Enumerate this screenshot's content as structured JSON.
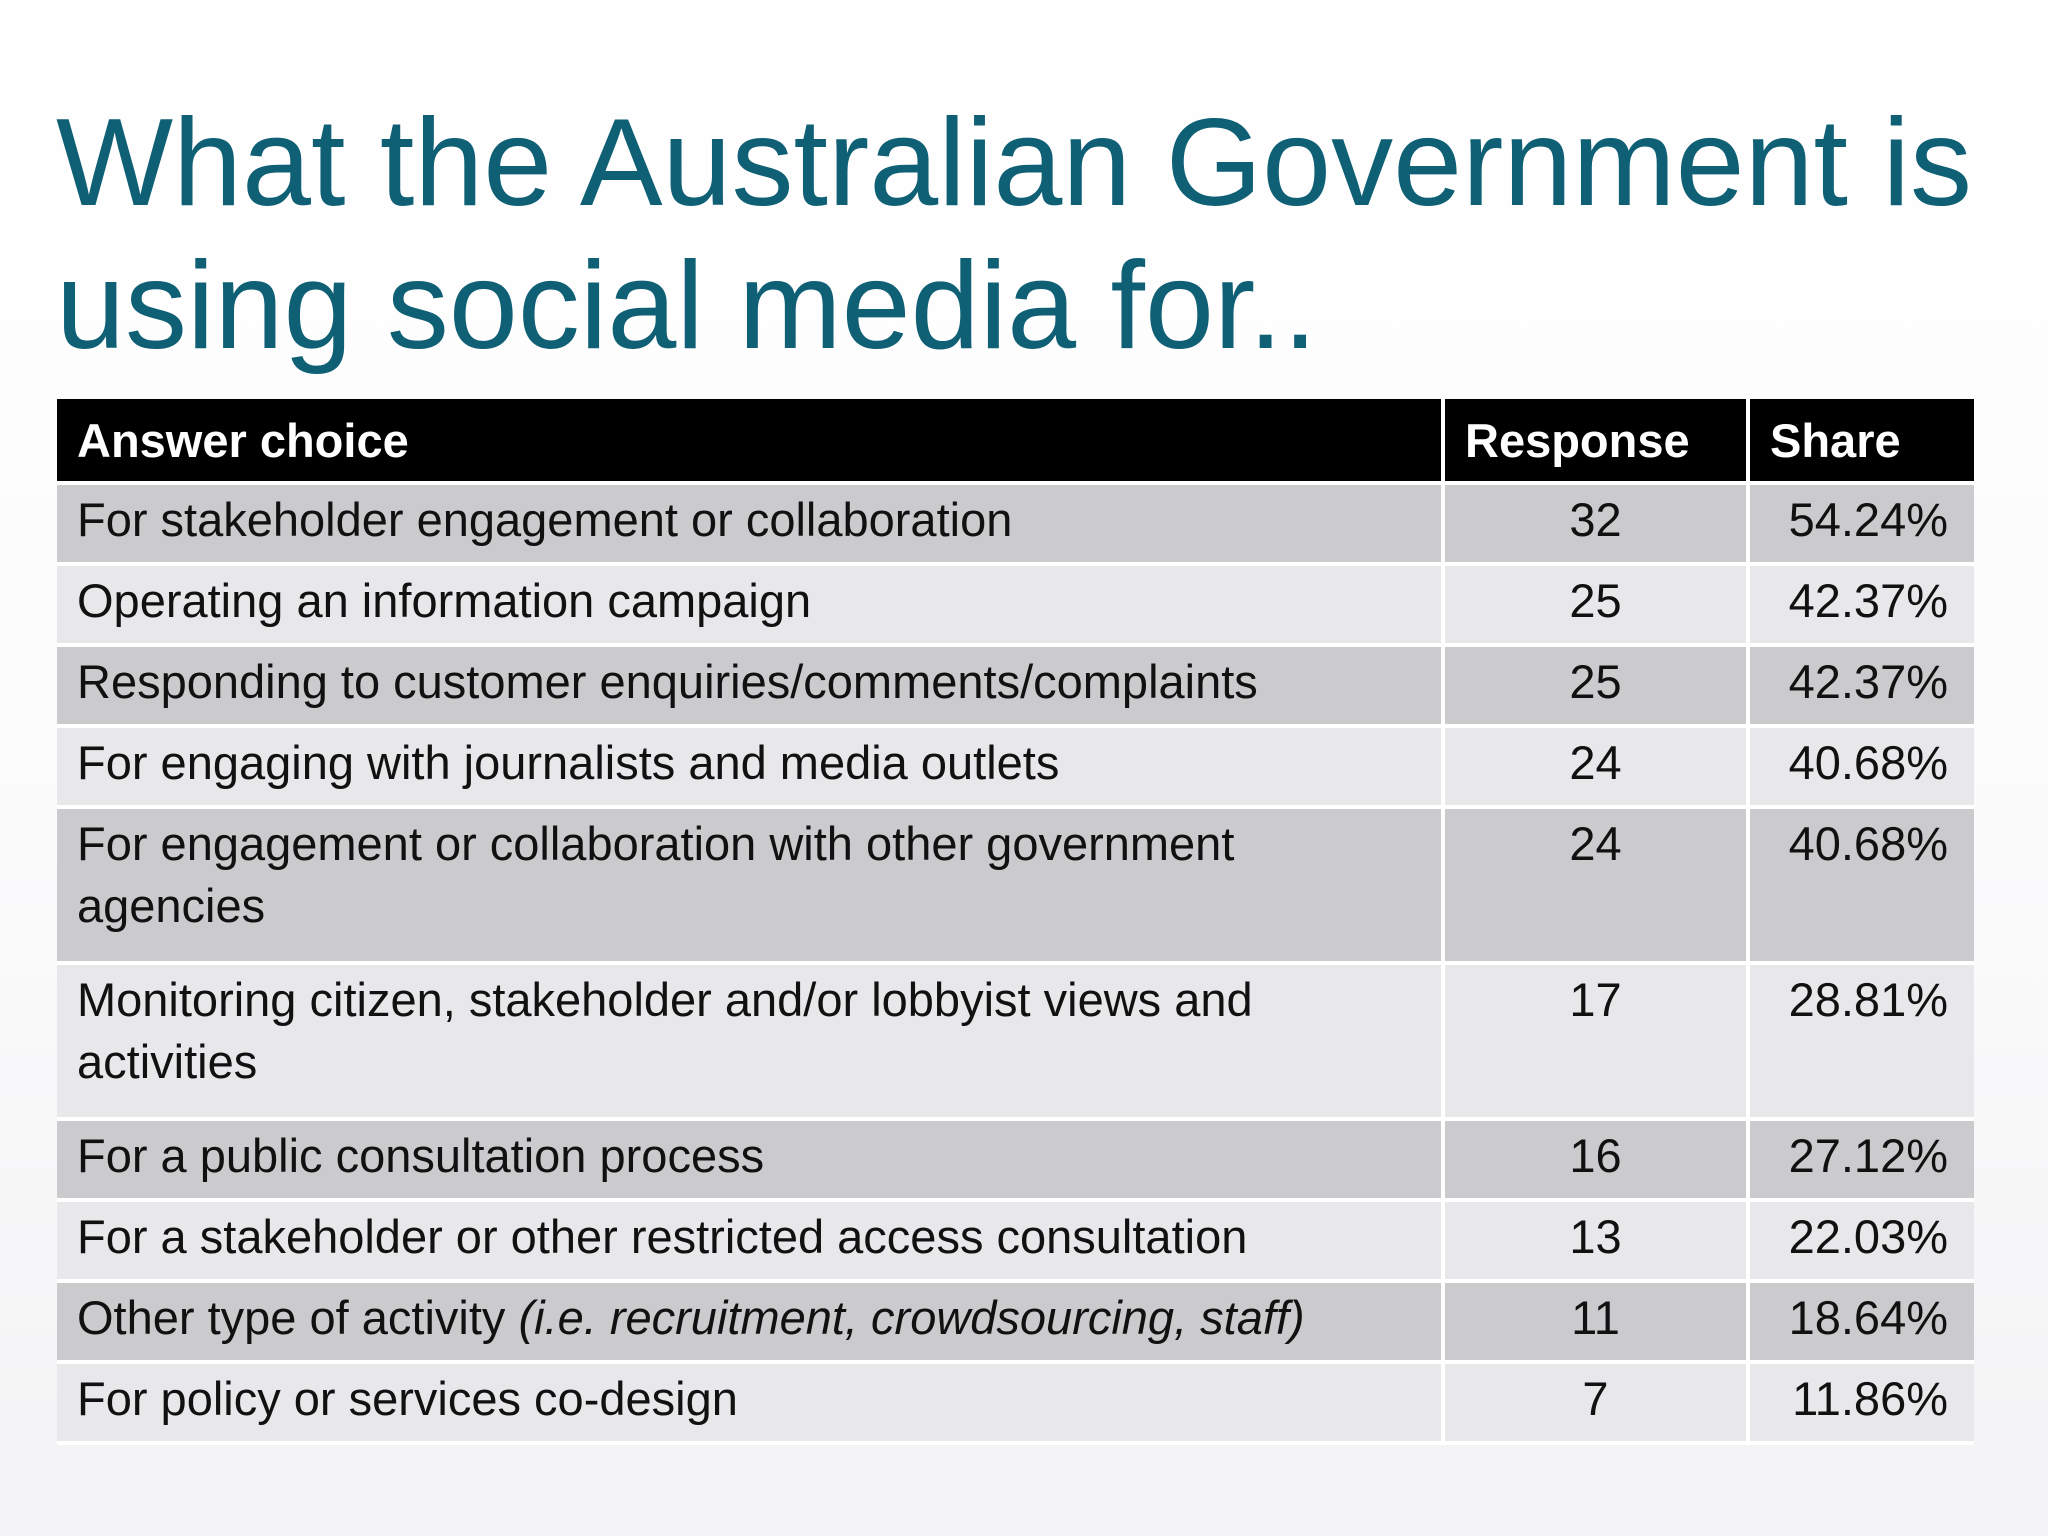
{
  "title": "What the Australian Government is using social media for..",
  "table": {
    "headers": {
      "answer": "Answer choice",
      "response": "Response",
      "share": "Share"
    },
    "rows": [
      {
        "answer": "For stakeholder engagement or collaboration",
        "response": "32",
        "share": "54.24%"
      },
      {
        "answer": "Operating an information campaign",
        "response": "25",
        "share": "42.37%"
      },
      {
        "answer": "Responding to customer enquiries/comments/complaints",
        "response": "25",
        "share": "42.37%"
      },
      {
        "answer": "For engaging with journalists and media outlets",
        "response": "24",
        "share": "40.68%"
      },
      {
        "answer": "For engagement or collaboration with other government agencies",
        "response": "24",
        "share": "40.68%"
      },
      {
        "answer": "Monitoring citizen, stakeholder and/or lobbyist views and activities",
        "response": "17",
        "share": "28.81%"
      },
      {
        "answer": "For a public consultation process",
        "response": "16",
        "share": "27.12%"
      },
      {
        "answer": "For a stakeholder or other restricted access consultation",
        "response": "13",
        "share": "22.03%"
      },
      {
        "answer": "Other type of activity ",
        "answer_note": "(i.e. recruitment, crowdsourcing, staff)",
        "response": "11",
        "share": "18.64%"
      },
      {
        "answer": "For policy or services co-design",
        "response": "7",
        "share": "11.86%"
      }
    ]
  }
}
